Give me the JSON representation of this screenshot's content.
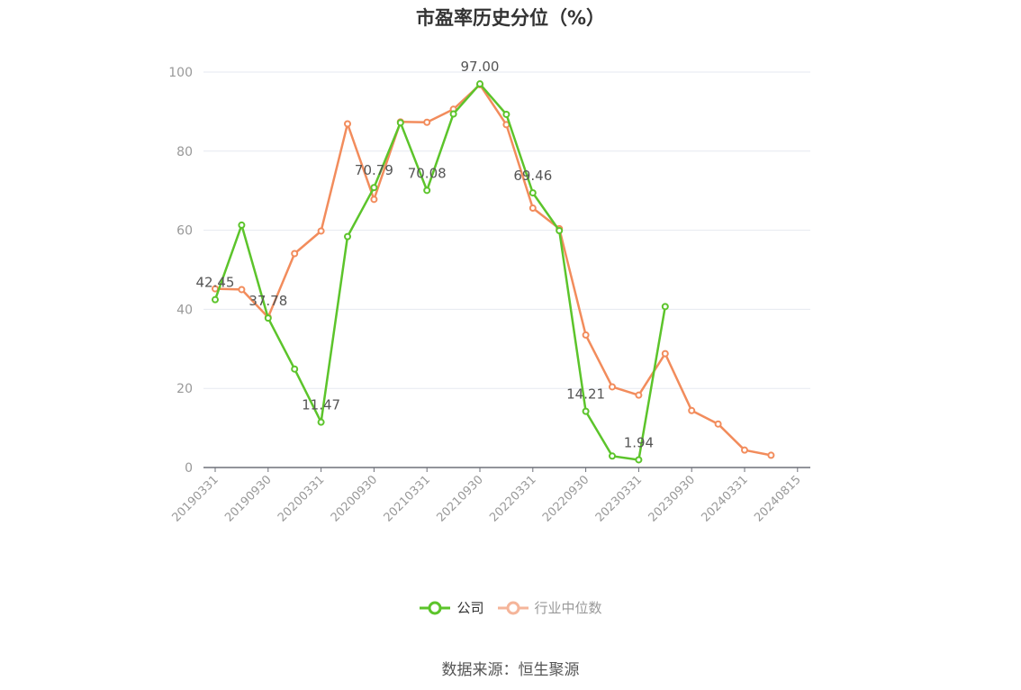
{
  "title": "市盈率历史分位（%）",
  "source_note": "数据来源：恒生聚源",
  "colors": {
    "company": "#5cc42b",
    "industry": "#f28c5c",
    "industry_legend": "#f5b59a",
    "axis": "#999999",
    "grid": "#e6e9f0",
    "label": "#555555"
  },
  "chart_data": {
    "type": "line",
    "title": "市盈率历史分位（%）",
    "xlabel": "",
    "ylabel": "",
    "ylim": [
      0,
      100
    ],
    "yticks": [
      0,
      20,
      40,
      60,
      80,
      100
    ],
    "grid": true,
    "legend_position": "bottom-center",
    "categories": [
      "20190331",
      "20190630",
      "20190930",
      "20191231",
      "20200331",
      "20200630",
      "20200930",
      "20201231",
      "20210331",
      "20210630",
      "20210930",
      "20211231",
      "20220331",
      "20220630",
      "20220930",
      "20221231",
      "20230331",
      "20230630",
      "20230930",
      "20231231",
      "20240331",
      "20240630",
      "20240815"
    ],
    "tick_labels": [
      "20190331",
      "20190930",
      "20200331",
      "20200930",
      "20210331",
      "20210930",
      "20220331",
      "20220930",
      "20230331",
      "20230930",
      "20240331",
      "20240815"
    ],
    "series": [
      {
        "name": "公司",
        "values": [
          42.45,
          61.3,
          37.78,
          24.9,
          11.47,
          58.4,
          70.79,
          87.2,
          70.08,
          89.4,
          97.0,
          89.3,
          69.46,
          59.9,
          14.21,
          2.9,
          1.94,
          40.7,
          null,
          null,
          null,
          null,
          null
        ],
        "labels": {
          "0": "42.45",
          "2": "37.78",
          "4": "11.47",
          "6": "70.79",
          "8": "70.08",
          "10": "97.00",
          "12": "69.46",
          "14": "14.21",
          "16": "1.94"
        }
      },
      {
        "name": "行业中位数",
        "values": [
          45.2,
          45.0,
          38.0,
          54.1,
          59.8,
          86.9,
          67.8,
          87.4,
          87.3,
          90.6,
          96.8,
          86.7,
          65.6,
          60.4,
          33.5,
          20.4,
          18.3,
          28.8,
          14.4,
          11.0,
          4.4,
          3.1,
          null
        ]
      }
    ]
  }
}
